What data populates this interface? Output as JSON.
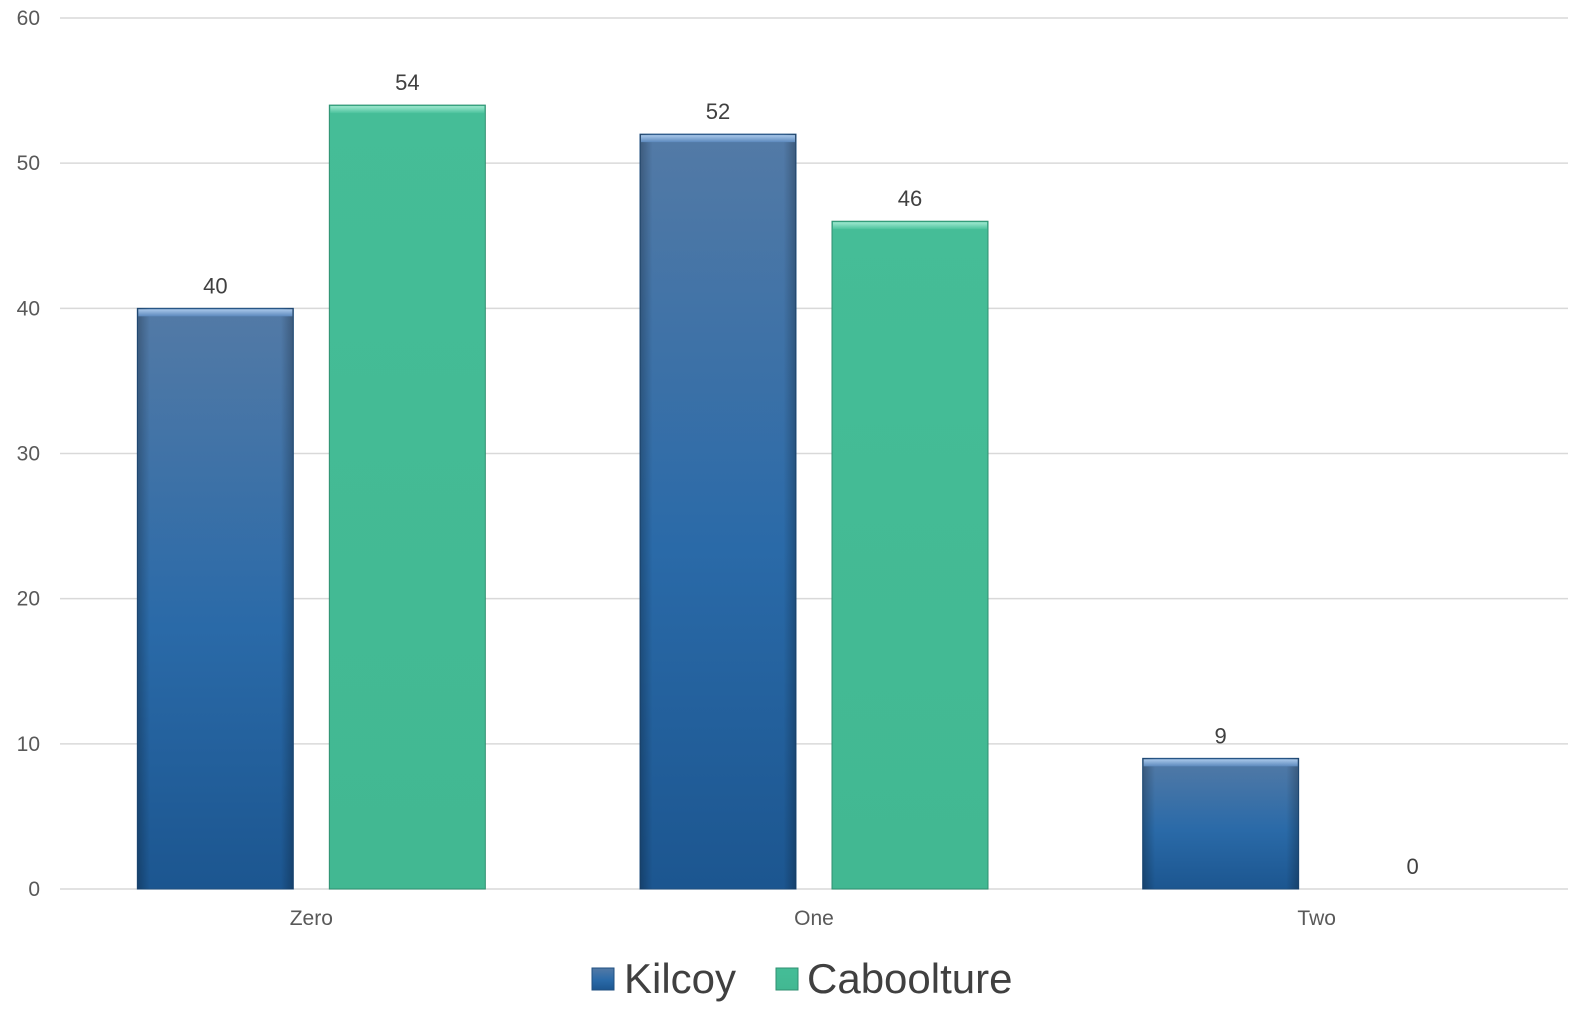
{
  "chart_data": {
    "type": "bar",
    "title": "",
    "xlabel": "",
    "ylabel": "",
    "categories": [
      "Zero",
      "One",
      "Two"
    ],
    "series": [
      {
        "name": "Kilcoy",
        "values": [
          40,
          52,
          9
        ],
        "color": "#2a6aa8"
      },
      {
        "name": "Caboolture",
        "values": [
          54,
          46,
          0
        ],
        "color": "#45bd97"
      }
    ],
    "ylim": [
      0,
      60
    ],
    "yticks": [
      "0",
      "10",
      "20",
      "30",
      "40",
      "50",
      "60"
    ],
    "grid": true,
    "legend_position": "bottom"
  }
}
